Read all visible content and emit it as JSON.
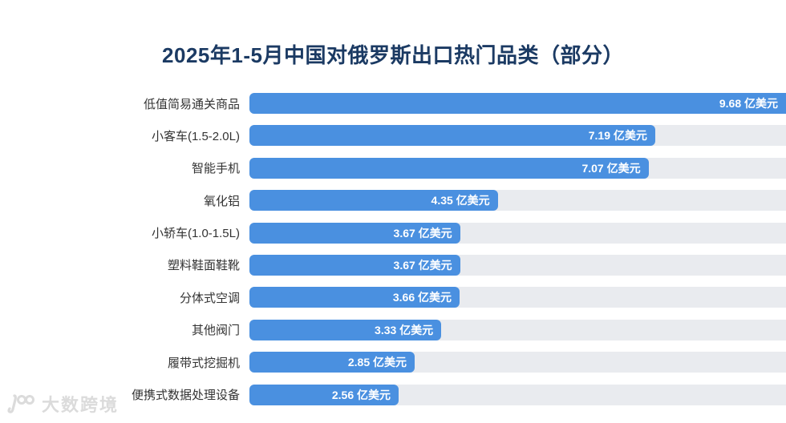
{
  "title": "2025年1-5月中国对俄罗斯出口热门品类（部分）",
  "watermark": {
    "logo": "100",
    "text": "大数跨境"
  },
  "chart_data": {
    "type": "bar",
    "orientation": "horizontal",
    "title": "2025年1-5月中国对俄罗斯出口热门品类（部分）",
    "unit": "亿美元",
    "categories": [
      "低值简易通关商品",
      "小客车(1.5-2.0L)",
      "智能手机",
      "氧化铝",
      "小轿车(1.0-1.5L)",
      "塑料鞋面鞋靴",
      "分体式空调",
      "其他阀门",
      "履带式挖掘机",
      "便携式数据处理设备"
    ],
    "values": [
      9.68,
      7.19,
      7.07,
      4.35,
      3.67,
      3.67,
      3.66,
      3.33,
      2.85,
      2.56
    ],
    "value_labels": [
      "9.68 亿美元",
      "7.19 亿美元",
      "7.07 亿美元",
      "4.35 亿美元",
      "3.67 亿美元",
      "3.67 亿美元",
      "3.66 亿美元",
      "3.33 亿美元",
      "2.85 亿美元",
      "2.56 亿美元"
    ],
    "xlim": [
      0,
      9.68
    ],
    "bar_color": "#4a90e0",
    "track_color": "#e9ebef",
    "title_color": "#1b3a63",
    "label_color": "#333333",
    "value_text_color": "#ffffff",
    "grid": false,
    "legend": false
  }
}
